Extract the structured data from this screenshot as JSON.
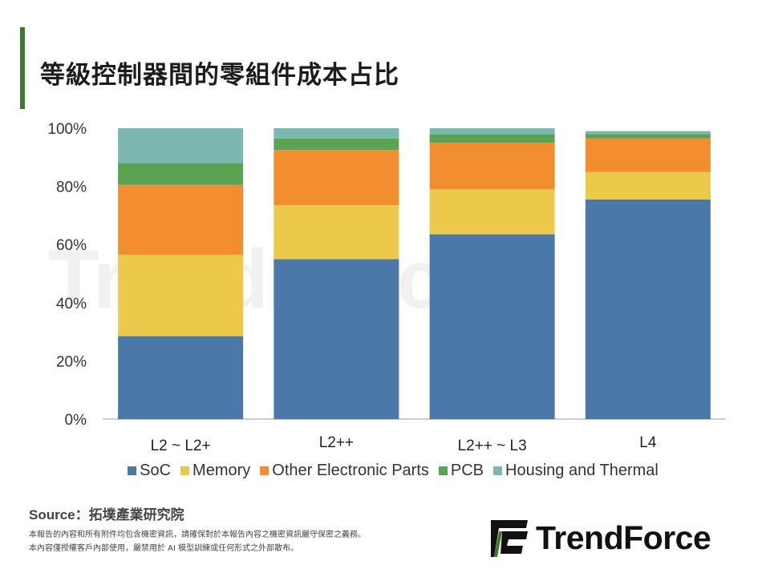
{
  "title": "等級控制器間的零組件成本占比",
  "watermark": "TrendForce",
  "colors": {
    "accent": "#3f7a2c",
    "soc": "#4a78a8",
    "memory": "#ecc94a",
    "other": "#f28d30",
    "pcb": "#5aa352",
    "housing": "#7ab8b0"
  },
  "chart_data": {
    "type": "bar",
    "stacked": true,
    "categories": [
      "L2 ~ L2+",
      "L2++",
      "L2++ ~ L3",
      "L4"
    ],
    "series": [
      {
        "name": "SoC",
        "color_key": "soc",
        "values": [
          28.5,
          55,
          63.5,
          75.5
        ]
      },
      {
        "name": "Memory",
        "color_key": "memory",
        "values": [
          28,
          18.5,
          15.5,
          9.5
        ]
      },
      {
        "name": "Other Electronic Parts",
        "color_key": "other",
        "values": [
          24,
          19,
          16,
          11.5
        ]
      },
      {
        "name": "PCB",
        "color_key": "pcb",
        "values": [
          7.5,
          4,
          3,
          1.5
        ]
      },
      {
        "name": "Housing and Thermal",
        "color_key": "housing",
        "values": [
          12,
          3.5,
          2,
          1
        ]
      }
    ],
    "yticks": [
      "0%",
      "20%",
      "40%",
      "60%",
      "80%",
      "100%"
    ],
    "ylim": [
      0,
      100
    ],
    "legend_position": "bottom"
  },
  "source": {
    "label": "Source：",
    "text": "拓墣產業研究院"
  },
  "footnotes": [
    "本報告的內容和所有附件均包含機密資訊，請確保對於本報告內容之機密資訊嚴守保密之義務。",
    "本內容僅授權客戶內部使用，嚴禁用於 AI 模型訓練或任何形式之外部散布。"
  ],
  "logo": {
    "text": "TrendForce"
  }
}
